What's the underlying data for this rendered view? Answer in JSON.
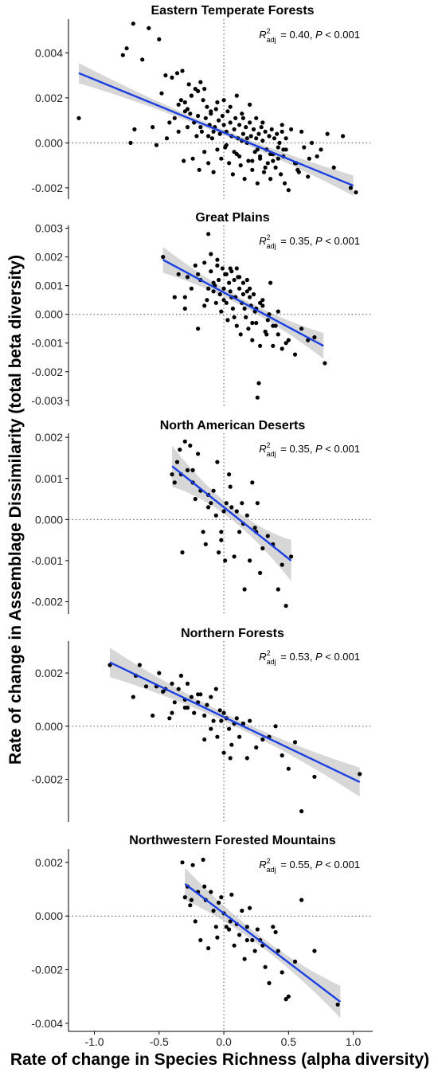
{
  "figure": {
    "ylabel": "Rate of change in Assemblage Dissimilarity (total beta diversity)",
    "xlabel": "Rate of change in Species Richness (alpha diversity)"
  },
  "chart_data": [
    {
      "type": "scatter",
      "title": "Eastern Temperate Forests",
      "stat_r2": "= 0.40, ",
      "stat_p": "< 0.001",
      "xlim": [
        -1.2,
        1.15
      ],
      "ylim": [
        -0.0025,
        0.0055
      ],
      "xticks": [
        -1.0,
        -0.5,
        0.0,
        0.5,
        1.0
      ],
      "yticks": [
        -0.002,
        0.0,
        0.002,
        0.004
      ],
      "ytick_labels": [
        "-0.002",
        "0.000",
        "0.002",
        "0.004"
      ],
      "regression": {
        "x_start": -1.12,
        "y_start": 0.0031,
        "x_end": 1.0,
        "y_end": -0.0019,
        "band_halfwidth_ends": 0.00045,
        "band_halfwidth_mid": 0.00012
      },
      "x": [
        -1.12,
        -0.78,
        -0.75,
        -0.72,
        -0.7,
        -0.69,
        -0.63,
        -0.58,
        -0.55,
        -0.52,
        -0.5,
        -0.48,
        -0.45,
        -0.44,
        -0.4,
        -0.38,
        -0.36,
        -0.35,
        -0.33,
        -0.32,
        -0.31,
        -0.3,
        -0.28,
        -0.27,
        -0.26,
        -0.25,
        -0.24,
        -0.23,
        -0.22,
        -0.21,
        -0.2,
        -0.19,
        -0.18,
        -0.17,
        -0.16,
        -0.15,
        -0.14,
        -0.13,
        -0.12,
        -0.11,
        -0.1,
        -0.09,
        -0.08,
        -0.07,
        -0.06,
        -0.05,
        -0.04,
        -0.03,
        -0.02,
        -0.01,
        0.0,
        0.01,
        0.02,
        0.03,
        0.04,
        0.05,
        0.06,
        0.07,
        0.08,
        0.09,
        0.1,
        0.11,
        0.12,
        0.13,
        0.14,
        0.15,
        0.16,
        0.17,
        0.18,
        0.19,
        0.2,
        0.21,
        0.22,
        0.23,
        0.24,
        0.25,
        0.26,
        0.27,
        0.28,
        0.29,
        0.3,
        0.31,
        0.32,
        0.33,
        0.34,
        0.35,
        0.36,
        0.37,
        0.38,
        0.39,
        0.4,
        0.41,
        0.42,
        0.43,
        0.44,
        0.45,
        0.46,
        0.47,
        0.48,
        0.5,
        0.52,
        0.55,
        0.57,
        0.6,
        0.62,
        0.65,
        0.68,
        0.72,
        0.75,
        0.8,
        0.85,
        0.92,
        0.98,
        1.02,
        -0.35,
        -0.2,
        -0.1,
        0.0,
        0.1,
        0.2,
        0.3,
        -0.15,
        0.05,
        0.25,
        0.45,
        -0.25,
        0.15,
        0.35,
        -0.05,
        0.12,
        0.22,
        0.32,
        0.42,
        -0.3,
        -0.18,
        -0.08,
        0.08,
        0.18,
        0.28,
        0.38,
        0.48,
        0.58,
        -0.42,
        -0.28,
        -0.12,
        0.02,
        0.14,
        0.26,
        0.36,
        0.46,
        0.56,
        0.66
      ],
      "y": [
        0.0011,
        0.0039,
        0.0042,
        0.0,
        0.0053,
        0.0006,
        0.0037,
        0.0051,
        0.0007,
        -0.0001,
        0.0046,
        0.0022,
        0.003,
        0.0002,
        0.0029,
        0.0011,
        0.0031,
        0.0005,
        0.0019,
        0.0032,
        -0.0008,
        0.0018,
        0.0007,
        0.0026,
        0.0013,
        0.0021,
        -0.0007,
        0.0009,
        0.0024,
        0.0003,
        0.0012,
        -0.0012,
        0.0027,
        0.0005,
        0.0019,
        -0.0004,
        0.0011,
        0.0016,
        -0.0009,
        0.0008,
        0.0013,
        0.0002,
        -0.0013,
        0.0007,
        0.0015,
        -0.0003,
        0.001,
        0.0004,
        -0.0007,
        0.0012,
        0.0008,
        -0.0002,
        0.0005,
        0.0014,
        -0.0009,
        0.0009,
        0.0003,
        -0.0014,
        0.0006,
        0.0011,
        -0.0005,
        0.0002,
        0.0008,
        -0.001,
        0.0013,
        0.0004,
        -0.0016,
        0.0007,
        0.0,
        -0.0008,
        0.0009,
        0.0003,
        -0.0012,
        0.0006,
        -0.0004,
        0.0002,
        -0.0018,
        0.0004,
        -0.0007,
        0.0007,
        0.0001,
        -0.0013,
        0.0005,
        -0.0003,
        -0.0009,
        0.0003,
        -0.0016,
        0.0006,
        -0.0005,
        0.0002,
        -0.0011,
        0.0004,
        -0.0007,
        0.0,
        -0.0014,
        0.0005,
        -0.0003,
        -0.0018,
        0.0002,
        -0.0021,
        0.0006,
        -0.0009,
        -0.0012,
        0.0005,
        -0.0002,
        -0.0015,
        0.0,
        -0.0006,
        -0.0003,
        0.0004,
        -0.0011,
        0.0003,
        -0.002,
        -0.0022,
        0.0017,
        0.0023,
        0.0014,
        0.0019,
        0.0021,
        0.0017,
        0.0009,
        0.0024,
        0.0016,
        0.0011,
        0.0008,
        0.0021,
        0.0011,
        0.0003,
        0.0018,
        -0.0006,
        -0.0008,
        -0.0011,
        -0.0002,
        0.0014,
        0.0007,
        0.0005,
        -0.0004,
        0.0002,
        -0.0006,
        -0.0008,
        -0.0003,
        -0.0013,
        0.0009,
        0.0015,
        0.0003,
        -0.0001,
        0.0001,
        -0.0003,
        -0.0005,
        -0.0006,
        -0.0009,
        -0.0007
      ]
    },
    {
      "type": "scatter",
      "title": "Great Plains",
      "stat_r2": "= 0.35, ",
      "stat_p": "< 0.001",
      "xlim": [
        -1.2,
        1.15
      ],
      "ylim": [
        -0.0032,
        0.0031
      ],
      "xticks": [
        -1.0,
        -0.5,
        0.0,
        0.5,
        1.0
      ],
      "yticks": [
        -0.003,
        -0.002,
        -0.001,
        0.0,
        0.001,
        0.002,
        0.003
      ],
      "ytick_labels": [
        "-0.003",
        "-0.002",
        "-0.001",
        "0.000",
        "0.001",
        "0.002",
        "0.003"
      ],
      "regression": {
        "x_start": -0.47,
        "y_start": 0.0019,
        "x_end": 0.77,
        "y_end": -0.0011,
        "band_halfwidth_ends": 0.00045,
        "band_halfwidth_mid": 0.00013
      },
      "x": [
        -0.47,
        -0.38,
        -0.35,
        -0.3,
        -0.28,
        -0.25,
        -0.22,
        -0.2,
        -0.18,
        -0.15,
        -0.13,
        -0.12,
        -0.1,
        -0.08,
        -0.06,
        -0.05,
        -0.04,
        -0.03,
        -0.02,
        -0.01,
        0.0,
        0.01,
        0.02,
        0.03,
        0.04,
        0.05,
        0.06,
        0.07,
        0.08,
        0.09,
        0.1,
        0.11,
        0.12,
        0.13,
        0.14,
        0.15,
        0.16,
        0.17,
        0.18,
        0.19,
        0.2,
        0.21,
        0.22,
        0.23,
        0.24,
        0.25,
        0.26,
        0.27,
        0.28,
        0.3,
        0.32,
        0.34,
        0.36,
        0.38,
        0.4,
        0.42,
        0.45,
        0.5,
        0.55,
        0.6,
        0.65,
        0.7,
        0.78,
        -0.1,
        -0.05,
        0.05,
        0.12,
        0.2,
        -0.15,
        0.0,
        0.08,
        0.15,
        0.25,
        0.33,
        -0.08,
        0.02,
        0.1,
        0.18,
        0.28,
        -0.2,
        -0.12,
        -0.3,
        0.35,
        0.42,
        0.22,
        0.3,
        0.38,
        0.48,
        -0.07,
        0.06
      ],
      "y": [
        0.002,
        0.0006,
        0.0014,
        0.0006,
        0.0013,
        0.0009,
        0.0017,
        -0.0005,
        0.0012,
        0.0018,
        0.0005,
        0.0028,
        0.0015,
        0.0008,
        0.0004,
        0.0019,
        0.0012,
        0.0007,
        0.0001,
        0.0016,
        0.0009,
        0.0014,
        0.0004,
        -0.0002,
        0.0011,
        0.0008,
        0.0015,
        0.0002,
        0.0012,
        0.0006,
        -0.0004,
        0.0013,
        0.0009,
        -0.0007,
        0.0004,
        0.0011,
        0.0002,
        -0.0001,
        0.0008,
        -0.0005,
        0.0006,
        0.0003,
        -0.0009,
        0.0007,
        0.0001,
        -0.0003,
        -0.0029,
        -0.0024,
        -0.0011,
        0.0005,
        -0.0006,
        -0.0002,
        0.0011,
        -0.0011,
        -0.0004,
        0.0001,
        -0.0012,
        -0.0009,
        -0.0014,
        -0.0005,
        -0.0009,
        -0.0008,
        -0.0017,
        0.0021,
        0.0017,
        0.0016,
        0.0013,
        0.0009,
        0.0003,
        0.0005,
        -0.0001,
        0.0007,
        0.0002,
        -0.0007,
        0.0011,
        0.0014,
        0.0016,
        0.0012,
        0.0004,
        0.0014,
        0.0009,
        0.0002,
        0.0,
        -0.0007,
        -0.0003,
        0.0003,
        -0.0004,
        -0.001,
        0.001,
        0.0006
      ]
    },
    {
      "type": "scatter",
      "title": "North American Deserts",
      "stat_r2": "= 0.35, ",
      "stat_p": "< 0.001",
      "xlim": [
        -1.2,
        1.15
      ],
      "ylim": [
        -0.0023,
        0.0021
      ],
      "xticks": [
        -1.0,
        -0.5,
        0.0,
        0.5,
        1.0
      ],
      "yticks": [
        -0.002,
        -0.001,
        0.0,
        0.001,
        0.002
      ],
      "ytick_labels": [
        "-0.002",
        "-0.001",
        "0.000",
        "0.001",
        "0.002"
      ],
      "regression": {
        "x_start": -0.4,
        "y_start": 0.0013,
        "x_end": 0.52,
        "y_end": -0.001,
        "band_halfwidth_ends": 0.0005,
        "band_halfwidth_mid": 0.00015
      },
      "x": [
        -0.4,
        -0.38,
        -0.36,
        -0.34,
        -0.32,
        -0.3,
        -0.28,
        -0.26,
        -0.24,
        -0.22,
        -0.2,
        -0.18,
        -0.16,
        -0.14,
        -0.12,
        -0.1,
        -0.08,
        -0.06,
        -0.05,
        -0.04,
        -0.02,
        0.0,
        0.01,
        0.02,
        0.04,
        0.06,
        0.08,
        0.1,
        0.12,
        0.14,
        0.16,
        0.18,
        0.2,
        0.22,
        0.24,
        0.26,
        0.28,
        0.3,
        0.34,
        0.38,
        0.42,
        0.45,
        0.48,
        0.52,
        -0.33,
        -0.24,
        -0.12,
        -0.02,
        0.05,
        0.15,
        0.25
      ],
      "y": [
        0.0011,
        0.0009,
        0.0014,
        0.0017,
        -0.0008,
        0.0019,
        0.0012,
        0.0018,
        0.0009,
        0.0005,
        0.0016,
        0.0007,
        -0.0003,
        -0.0006,
        0.0003,
        0.0004,
        0.0007,
        0.0001,
        0.0014,
        -0.0008,
        -0.0003,
        0.0002,
        -0.001,
        0.0004,
        0.0011,
        0.0003,
        -0.0009,
        0.0002,
        -0.0003,
        0.0004,
        -0.0017,
        0.0001,
        -0.001,
        0.0009,
        -0.0002,
        0.0004,
        -0.0013,
        -0.0007,
        -0.0004,
        -0.0006,
        -0.0017,
        -0.0011,
        -0.0021,
        -0.0009,
        0.0011,
        0.0012,
        0.0006,
        -0.0005,
        0.0008,
        -0.0001,
        -0.0003
      ]
    },
    {
      "type": "scatter",
      "title": "Northern Forests",
      "stat_r2": "= 0.53, ",
      "stat_p": "< 0.001",
      "xlim": [
        -1.2,
        1.15
      ],
      "ylim": [
        -0.0036,
        0.0032
      ],
      "xticks": [
        -1.0,
        -0.5,
        0.0,
        0.5,
        1.0
      ],
      "yticks": [
        -0.002,
        0.0,
        0.002
      ],
      "ytick_labels": [
        "-0.002",
        "0.000",
        "0.002"
      ],
      "regression": {
        "x_start": -0.88,
        "y_start": 0.0024,
        "x_end": 1.05,
        "y_end": -0.0021,
        "band_halfwidth_ends": 0.00055,
        "band_halfwidth_mid": 0.00015
      },
      "x": [
        -0.88,
        -0.7,
        -0.68,
        -0.65,
        -0.6,
        -0.55,
        -0.52,
        -0.5,
        -0.47,
        -0.45,
        -0.42,
        -0.4,
        -0.38,
        -0.35,
        -0.33,
        -0.3,
        -0.28,
        -0.25,
        -0.23,
        -0.2,
        -0.18,
        -0.15,
        -0.13,
        -0.1,
        -0.08,
        -0.06,
        -0.05,
        -0.03,
        -0.02,
        0.0,
        0.02,
        0.04,
        0.06,
        0.08,
        0.1,
        0.12,
        0.15,
        0.18,
        0.2,
        0.25,
        0.3,
        0.35,
        0.4,
        0.45,
        0.5,
        0.55,
        0.6,
        0.7,
        1.05,
        -0.28,
        -0.2,
        -0.1,
        0.0,
        0.05,
        0.15,
        -0.4,
        -0.3,
        -0.15
      ],
      "y": [
        0.0023,
        0.0011,
        0.0019,
        0.0023,
        0.0015,
        0.0004,
        0.0015,
        0.002,
        0.0013,
        0.0014,
        0.0003,
        0.0016,
        0.0009,
        0.0014,
        0.0019,
        0.0007,
        0.0016,
        0.0011,
        0.0005,
        0.0009,
        0.0012,
        0.0004,
        0.0008,
        0.0011,
        0.0002,
        0.0014,
        -0.0004,
        0.0006,
        0.0002,
        -0.001,
        0.0003,
        -0.0001,
        -0.0007,
        0.0001,
        0.0003,
        -0.0004,
        0.0001,
        -0.0012,
        0.0002,
        -0.0008,
        -0.0005,
        -0.0004,
        0.0,
        -0.0011,
        -0.0016,
        -0.0006,
        -0.0032,
        -0.0019,
        -0.0018,
        0.0007,
        0.0012,
        -0.0001,
        0.0005,
        -0.0012,
        0.0001,
        0.0005,
        0.001,
        -0.0005
      ]
    },
    {
      "type": "scatter",
      "title": "Northwestern Forested Mountains",
      "stat_r2": "= 0.55, ",
      "stat_p": "< 0.001",
      "xlim": [
        -1.2,
        1.15
      ],
      "ylim": [
        -0.0043,
        0.0025
      ],
      "xticks": [
        -1.0,
        -0.5,
        0.0,
        0.5,
        1.0
      ],
      "xtick_labels": [
        "-1.0",
        "-0.5",
        "0.0",
        "0.5",
        "1.0"
      ],
      "yticks": [
        -0.004,
        -0.002,
        0.0,
        0.002
      ],
      "ytick_labels": [
        "-0.004",
        "-0.002",
        "0.000",
        "0.002"
      ],
      "regression": {
        "x_start": -0.3,
        "y_start": 0.0012,
        "x_end": 0.9,
        "y_end": -0.0032,
        "band_halfwidth_ends": 0.0006,
        "band_halfwidth_mid": 0.00018
      },
      "x": [
        -0.32,
        -0.3,
        -0.28,
        -0.26,
        -0.24,
        -0.22,
        -0.2,
        -0.18,
        -0.16,
        -0.14,
        -0.12,
        -0.1,
        -0.08,
        -0.06,
        -0.04,
        -0.02,
        0.0,
        0.02,
        0.04,
        0.06,
        0.08,
        0.1,
        0.12,
        0.14,
        0.16,
        0.18,
        0.2,
        0.22,
        0.24,
        0.26,
        0.28,
        0.3,
        0.32,
        0.35,
        0.38,
        0.4,
        0.42,
        0.45,
        0.48,
        0.5,
        0.55,
        0.6,
        0.7,
        0.88,
        -0.15,
        0.05,
        0.18,
        -0.25,
        -0.05
      ],
      "y": [
        0.002,
        0.0007,
        0.0011,
        0.0004,
        0.0019,
        -0.0002,
        0.0009,
        -0.0009,
        0.0021,
        0.0006,
        -0.0012,
        0.0009,
        0.0002,
        -0.0004,
        0.0005,
        0.0007,
        0.0001,
        -0.0004,
        -0.0005,
        0.0008,
        -0.0011,
        -0.0003,
        -0.0007,
        0.0002,
        -0.0016,
        -0.0004,
        0.0003,
        -0.0009,
        -0.0013,
        -0.0005,
        -0.0009,
        -0.0011,
        -0.0019,
        -0.0025,
        -0.0004,
        -0.0006,
        -0.0013,
        -0.0021,
        -0.0031,
        -0.003,
        -0.0017,
        0.0006,
        -0.0013,
        -0.0033,
        0.0011,
        -0.0002,
        -0.0009,
        0.0006,
        -0.0008
      ]
    }
  ]
}
